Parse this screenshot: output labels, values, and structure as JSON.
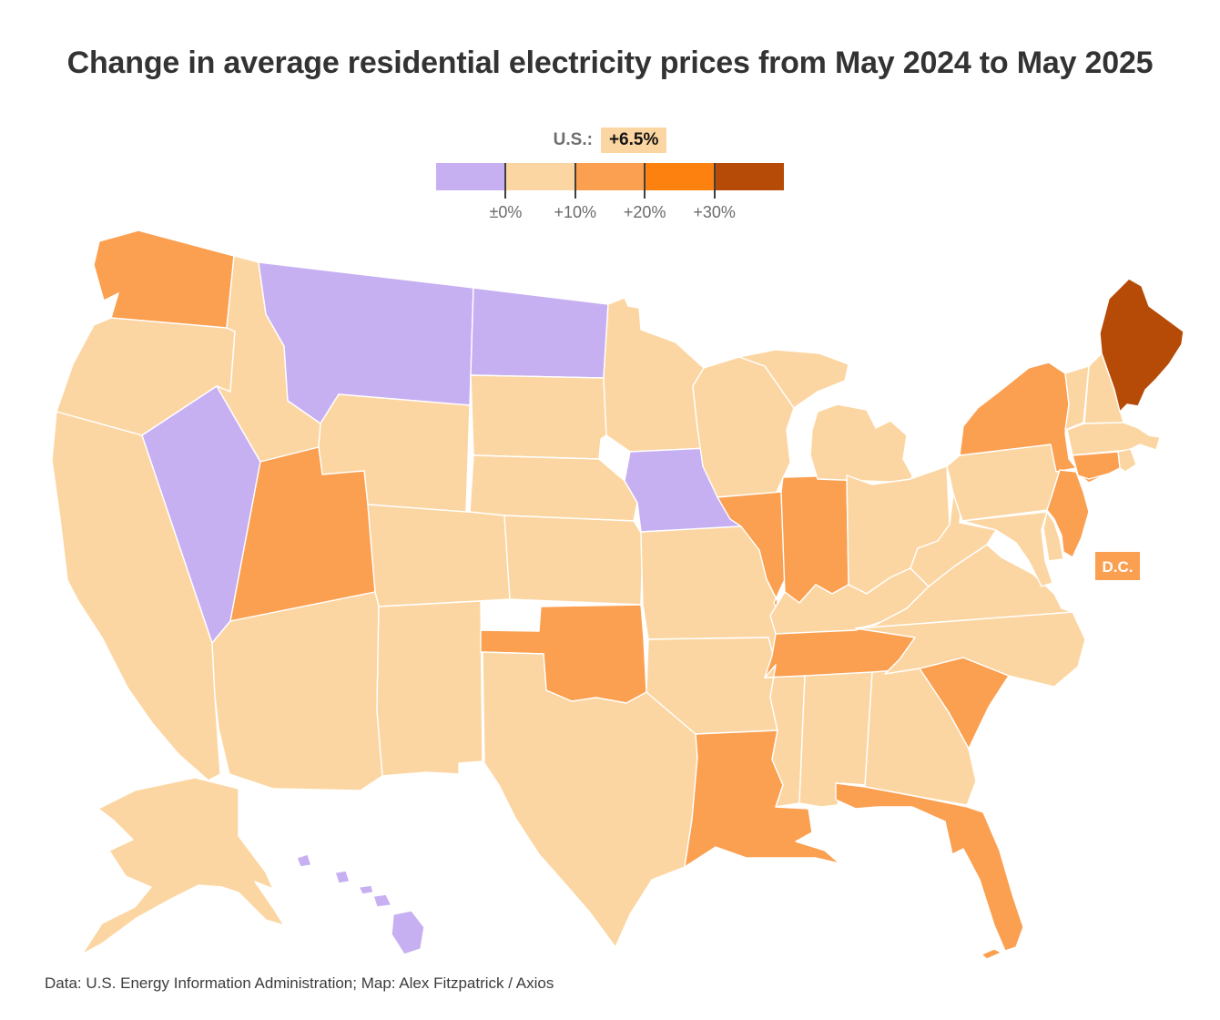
{
  "title": "Change in average residential electricity prices from May 2024 to May 2025",
  "legend": {
    "us_label": "U.S.:",
    "us_value": "+6.5%",
    "tick_labels": [
      "±0%",
      "+10%",
      "+20%",
      "+30%"
    ],
    "colors": {
      "neg": "#c7b0f2",
      "p0_10": "#fcd6a2",
      "p10_20": "#fb9f50",
      "p20_30": "#fd810e",
      "p30": "#b64b08"
    },
    "bands": [
      {
        "key": "neg",
        "label": "±0% or below"
      },
      {
        "key": "p0_10",
        "label": "0% to +10%"
      },
      {
        "key": "p10_20",
        "label": "+10% to +20%"
      },
      {
        "key": "p20_30",
        "label": "+20% to +30%"
      },
      {
        "key": "p30",
        "label": "+30% or more"
      }
    ]
  },
  "map": {
    "dc_label": "D.C.",
    "states": {
      "WA": "p10_20",
      "OR": "p0_10",
      "CA": "p0_10",
      "NV": "neg",
      "ID": "p0_10",
      "MT": "neg",
      "WY": "p0_10",
      "UT": "p10_20",
      "AZ": "p0_10",
      "CO": "p0_10",
      "NM": "p0_10",
      "ND": "neg",
      "SD": "p0_10",
      "NE": "p0_10",
      "KS": "p0_10",
      "OK": "p10_20",
      "TX": "p0_10",
      "MN": "p0_10",
      "IA": "neg",
      "MO": "p0_10",
      "AR": "p0_10",
      "LA": "p10_20",
      "WI": "p0_10",
      "IL": "p10_20",
      "IN": "p10_20",
      "MI": "p0_10",
      "OH": "p0_10",
      "KY": "p0_10",
      "TN": "p10_20",
      "MS": "p0_10",
      "AL": "p0_10",
      "GA": "p0_10",
      "FL": "p10_20",
      "SC": "p10_20",
      "NC": "p0_10",
      "VA": "p0_10",
      "WV": "p0_10",
      "MD": "p0_10",
      "DE": "p0_10",
      "PA": "p0_10",
      "NJ": "p10_20",
      "NY": "p10_20",
      "CT": "p10_20",
      "RI": "p0_10",
      "MA": "p0_10",
      "VT": "p0_10",
      "NH": "p0_10",
      "ME": "p30",
      "AK": "p0_10",
      "HI": "neg",
      "DC": "p10_20"
    }
  },
  "footer": "Data: U.S. Energy Information Administration; Map: Alex Fitzpatrick / Axios",
  "chart_data": {
    "type": "heatmap",
    "subtype": "us-state-choropleth",
    "title": "Change in average residential electricity prices from May 2024 to May 2025",
    "us_average": "+6.5%",
    "legend_ticks": [
      "±0%",
      "+10%",
      "+20%",
      "+30%"
    ],
    "bins": [
      "±0% or below",
      "0% to +10%",
      "+10% to +20%",
      "+20% to +30%",
      "+30% or more"
    ],
    "states_in_bin_neg": [
      "MT",
      "NV",
      "ND",
      "IA",
      "HI"
    ],
    "states_in_bin_p10_20": [
      "WA",
      "UT",
      "OK",
      "LA",
      "IL",
      "IN",
      "TN",
      "SC",
      "FL",
      "NY",
      "NJ",
      "CT",
      "DC"
    ],
    "states_in_bin_p30": [
      "ME"
    ],
    "states_in_bin_p0_10": [
      "OR",
      "CA",
      "ID",
      "WY",
      "CO",
      "AZ",
      "NM",
      "SD",
      "NE",
      "KS",
      "TX",
      "MN",
      "MO",
      "AR",
      "WI",
      "MI",
      "OH",
      "KY",
      "MS",
      "AL",
      "GA",
      "NC",
      "VA",
      "WV",
      "MD",
      "DE",
      "PA",
      "RI",
      "MA",
      "VT",
      "NH",
      "AK"
    ]
  }
}
